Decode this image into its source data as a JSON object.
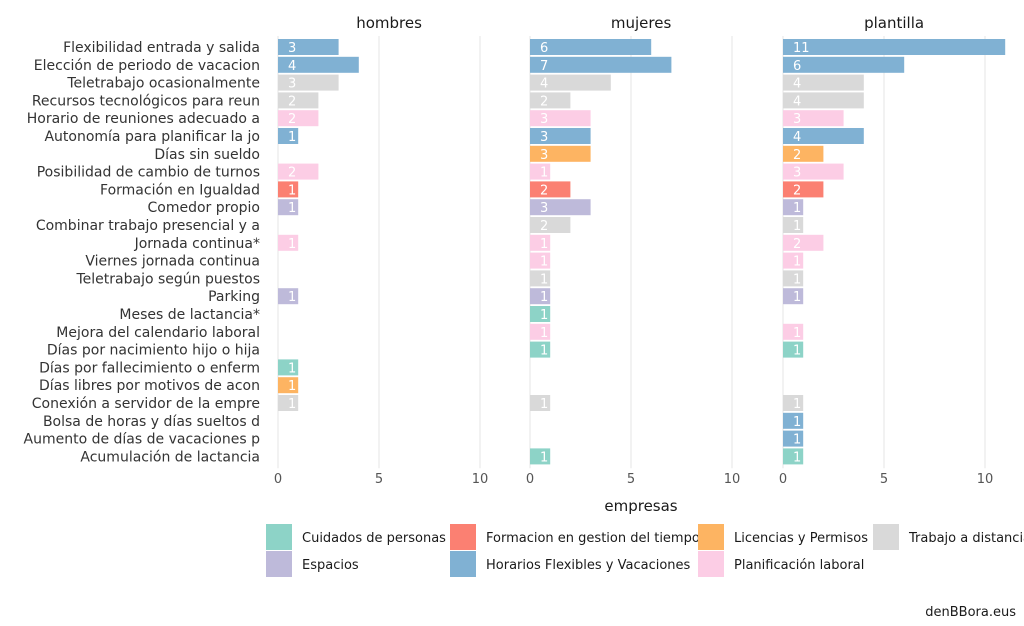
{
  "chart_data": {
    "type": "bar",
    "orientation": "horizontal",
    "facet_titles": [
      "hombres",
      "mujeres",
      "plantilla"
    ],
    "xlabel": "empresas",
    "xlim": [
      0,
      10
    ],
    "xticks": [
      "0",
      "5",
      "10"
    ],
    "caption": "denBBora.eus",
    "grid": true,
    "legend_position": "bottom",
    "legend": [
      {
        "key": "cuidados",
        "label": "Cuidados de personas",
        "color": "#8DD3C7"
      },
      {
        "key": "espacios",
        "label": "Espacios",
        "color": "#BEBADA"
      },
      {
        "key": "formacion",
        "label": "Formacion en gestion del tiempo",
        "color": "#FB8072"
      },
      {
        "key": "horarios",
        "label": "Horarios Flexibles y Vacaciones",
        "color": "#80B1D3"
      },
      {
        "key": "licencias",
        "label": "Licencias y Permisos",
        "color": "#FDB462"
      },
      {
        "key": "planificacion",
        "label": "Planificación laboral",
        "color": "#FCCDE5"
      },
      {
        "key": "trabajo",
        "label": "Trabajo a distancia",
        "color": "#D9D9D9"
      }
    ],
    "categories": [
      {
        "label": "Flexibilidad entrada y salida",
        "group": "horarios",
        "values": [
          3,
          6,
          11
        ]
      },
      {
        "label": "Elección de periodo de vacacion",
        "group": "horarios",
        "values": [
          4,
          7,
          6
        ]
      },
      {
        "label": "Teletrabajo ocasionalmente",
        "group": "trabajo",
        "values": [
          3,
          4,
          4
        ]
      },
      {
        "label": "Recursos tecnológicos para reun",
        "group": "trabajo",
        "values": [
          2,
          2,
          4
        ]
      },
      {
        "label": "Horario de reuniones adecuado a",
        "group": "planificacion",
        "values": [
          2,
          3,
          3
        ]
      },
      {
        "label": "Autonomía para planificar la jo",
        "group": "horarios",
        "values": [
          1,
          3,
          4
        ]
      },
      {
        "label": "Días sin sueldo",
        "group": "licencias",
        "values": [
          null,
          3,
          2
        ]
      },
      {
        "label": "Posibilidad de cambio de turnos",
        "group": "planificacion",
        "values": [
          2,
          1,
          3
        ]
      },
      {
        "label": "Formación en Igualdad",
        "group": "formacion",
        "values": [
          1,
          2,
          2
        ]
      },
      {
        "label": "Comedor propio",
        "group": "espacios",
        "values": [
          1,
          3,
          1
        ]
      },
      {
        "label": "Combinar trabajo presencial y a",
        "group": "trabajo",
        "values": [
          null,
          2,
          1
        ]
      },
      {
        "label": "Jornada continua*",
        "group": "planificacion",
        "values": [
          1,
          1,
          2
        ]
      },
      {
        "label": "Viernes jornada continua",
        "group": "planificacion",
        "values": [
          null,
          1,
          1
        ]
      },
      {
        "label": "Teletrabajo según puestos",
        "group": "trabajo",
        "values": [
          null,
          1,
          1
        ]
      },
      {
        "label": "Parking",
        "group": "espacios",
        "values": [
          1,
          1,
          1
        ]
      },
      {
        "label": "Meses de lactancia*",
        "group": "cuidados",
        "values": [
          null,
          1,
          null
        ]
      },
      {
        "label": "Mejora del calendario laboral",
        "group": "planificacion",
        "values": [
          null,
          1,
          1
        ]
      },
      {
        "label": "Días por nacimiento hijo o hija",
        "group": "cuidados",
        "values": [
          null,
          1,
          1
        ]
      },
      {
        "label": "Días por fallecimiento o enferm",
        "group": "cuidados",
        "values": [
          1,
          null,
          null
        ]
      },
      {
        "label": "Días libres por motivos de acon",
        "group": "licencias",
        "values": [
          1,
          null,
          null
        ]
      },
      {
        "label": "Conexión a servidor de la empre",
        "group": "trabajo",
        "values": [
          1,
          1,
          1
        ]
      },
      {
        "label": "Bolsa de horas y días sueltos d",
        "group": "horarios",
        "values": [
          null,
          null,
          1
        ]
      },
      {
        "label": "Aumento de días de vacaciones p",
        "group": "horarios",
        "values": [
          null,
          null,
          1
        ]
      },
      {
        "label": "Acumulación de lactancia",
        "group": "cuidados",
        "values": [
          null,
          1,
          1
        ]
      }
    ]
  }
}
